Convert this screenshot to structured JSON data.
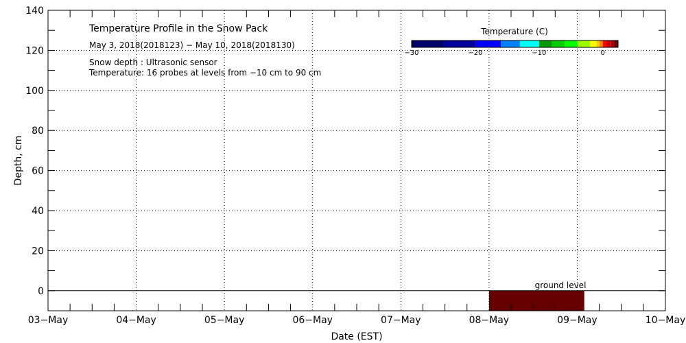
{
  "chart_data": {
    "type": "heatmap",
    "title": "Temperature Profile in the Snow Pack",
    "subtitle": "May  3, 2018(2018123) − May 10, 2018(2018130)",
    "notes": [
      "Snow depth : Ultrasonic sensor",
      "Temperature: 16 probes at levels from −10 cm to 90 cm"
    ],
    "xlabel": "Date (EST)",
    "ylabel": "Depth, cm",
    "xlim": [
      0,
      7
    ],
    "ylim": [
      -10,
      140
    ],
    "x_tick_labels": [
      "03−May",
      "04−May",
      "05−May",
      "06−May",
      "07−May",
      "08−May",
      "09−May",
      "10−May"
    ],
    "y_ticks": [
      0,
      20,
      40,
      60,
      80,
      100,
      120,
      140
    ],
    "grid": true,
    "ground_level_label": "ground level",
    "cells": [
      {
        "x0": 5.0,
        "x1": 6.08,
        "y0": -10,
        "y1": 0,
        "temp": 2,
        "color": "#660000"
      }
    ],
    "colorbar": {
      "title": "Temperature (C)",
      "range": [
        -30,
        2.4
      ],
      "tick_labels": [
        {
          "v": -30,
          "t": "−30"
        },
        {
          "v": -20,
          "t": "−20"
        },
        {
          "v": -10,
          "t": "−10"
        },
        {
          "v": 0,
          "t": "0"
        }
      ],
      "segments": [
        {
          "from": -30,
          "to": -25,
          "color": "#000066"
        },
        {
          "from": -25,
          "to": -20,
          "color": "#000099"
        },
        {
          "from": -20,
          "to": -16,
          "color": "#0000ff"
        },
        {
          "from": -16,
          "to": -13,
          "color": "#0080ff"
        },
        {
          "from": -13,
          "to": -10,
          "color": "#00ffff"
        },
        {
          "from": -10,
          "to": -8,
          "color": "#009900"
        },
        {
          "from": -8,
          "to": -6,
          "color": "#00cc00"
        },
        {
          "from": -6,
          "to": -4,
          "color": "#00ff00"
        },
        {
          "from": -4,
          "to": -2,
          "color": "#99ff00"
        },
        {
          "from": -2,
          "to": -1,
          "color": "#ffff00"
        },
        {
          "from": -1,
          "to": -0.5,
          "color": "#ffcc00"
        },
        {
          "from": -0.5,
          "to": 0,
          "color": "#ff8000"
        },
        {
          "from": 0,
          "to": 0.5,
          "color": "#ff0000"
        },
        {
          "from": 0.5,
          "to": 1.3,
          "color": "#cc0000"
        },
        {
          "from": 1.3,
          "to": 1.8,
          "color": "#990000"
        },
        {
          "from": 1.8,
          "to": 2.4,
          "color": "#660000"
        }
      ]
    }
  }
}
